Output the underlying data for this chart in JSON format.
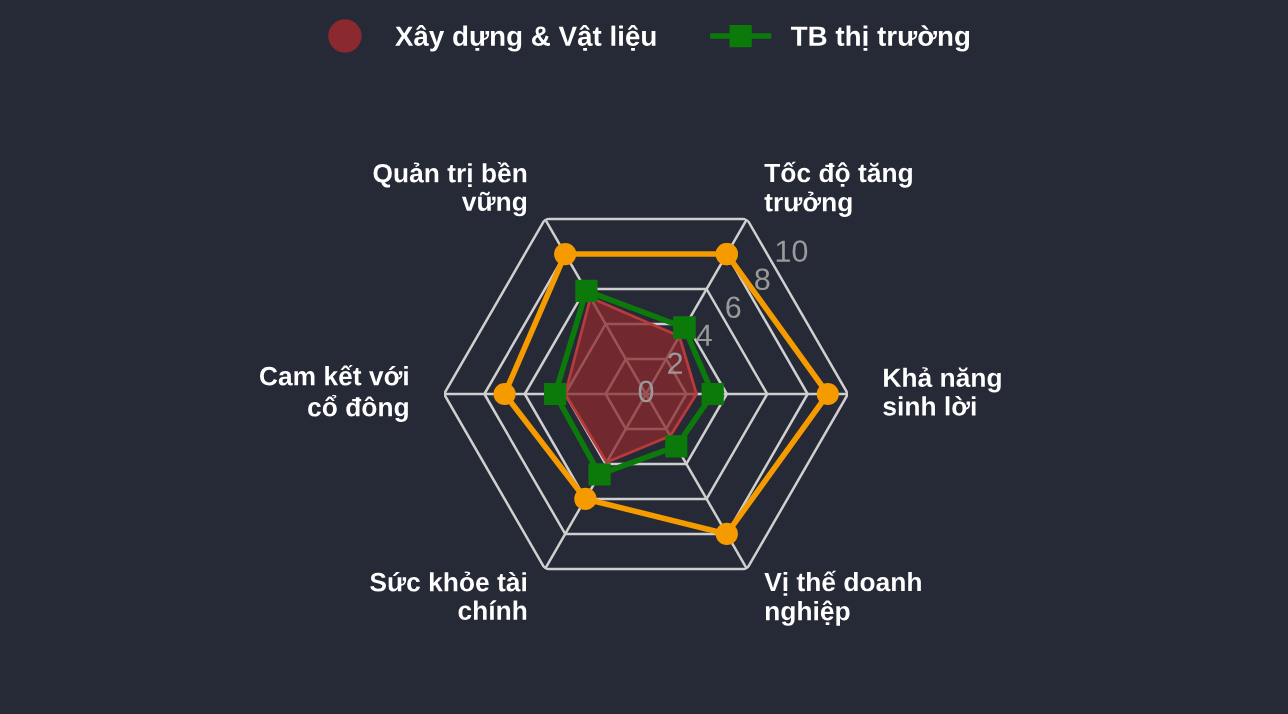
{
  "chart_data": {
    "type": "radar",
    "categories": [
      "Tốc độ tăng trưởng",
      "Khả năng sinh lời",
      "Vị thế doanh nghiệp",
      "Sức khỏe tài chính",
      "Cam kết với cổ đông",
      "Quản trị bền vững"
    ],
    "ylim": [
      0,
      10
    ],
    "yticks": [
      0,
      2,
      4,
      6,
      8,
      10
    ],
    "grid": true,
    "legend": "top",
    "series": [
      {
        "color": "#f59b00",
        "marker": "circle",
        "values": [
          8,
          9,
          8,
          6,
          7,
          8
        ]
      },
      {
        "name": "Xây dựng & Vật liệu",
        "type": "area",
        "marker": "none",
        "color": "#8b2a2e",
        "values": [
          3.3,
          2.5,
          2.4,
          3.9,
          4,
          5.5
        ]
      },
      {
        "name": "TB thị trường",
        "color": "#0b7a0b",
        "marker": "square",
        "values": [
          3.8,
          3.3,
          3,
          4.6,
          4.5,
          5.9
        ]
      }
    ]
  }
}
